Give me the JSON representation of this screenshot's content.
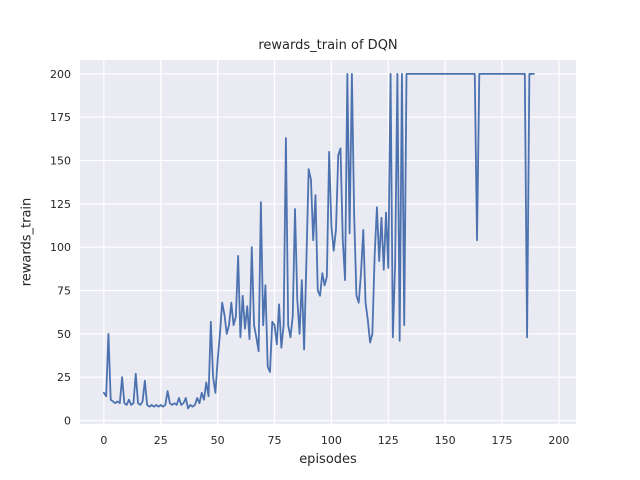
{
  "figure": {
    "title": "rewards_train of DQN",
    "xlabel": "episodes",
    "ylabel": "rewards_train"
  },
  "chart_data": {
    "type": "line",
    "title": "rewards_train of DQN",
    "xlabel": "episodes",
    "ylabel": "rewards_train",
    "xticks": [
      0,
      25,
      50,
      75,
      100,
      125,
      150,
      175,
      200
    ],
    "yticks": [
      0,
      25,
      50,
      75,
      100,
      125,
      150,
      175,
      200
    ],
    "xlim": [
      -10.5,
      207.5
    ],
    "ylim": [
      -2,
      208
    ],
    "grid": true,
    "legend_position": "none",
    "style": {
      "figure_bg": "#ffffff",
      "axes_bg": "#eaeaf2",
      "grid_color": "#ffffff",
      "line_color": "#4c72b0",
      "text_color": "#262626",
      "line_width": 1.8
    },
    "series": [
      {
        "name": "rewards_train",
        "color": "#4c72b0",
        "x_start": 0,
        "x_step": 1,
        "values": [
          16,
          14,
          50,
          12,
          11,
          10,
          11,
          10,
          25,
          10,
          9,
          12,
          9,
          10,
          27,
          10,
          9,
          11,
          23,
          9,
          8,
          9,
          8,
          9,
          8,
          9,
          8,
          9,
          17,
          10,
          9,
          10,
          9,
          13,
          9,
          10,
          13,
          7,
          9,
          8,
          9,
          13,
          10,
          16,
          12,
          22,
          14,
          57,
          25,
          16,
          35,
          50,
          68,
          61,
          50,
          55,
          68,
          55,
          60,
          95,
          48,
          72,
          53,
          66,
          47,
          100,
          55,
          48,
          40,
          126,
          55,
          78,
          31,
          28,
          57,
          55,
          44,
          67,
          42,
          55,
          163,
          55,
          48,
          60,
          122,
          70,
          50,
          81,
          41,
          92,
          145,
          139,
          104,
          130,
          75,
          72,
          85,
          78,
          83,
          155,
          112,
          98,
          110,
          153,
          157,
          104,
          81,
          200,
          108,
          200,
          118,
          72,
          68,
          85,
          110,
          68,
          58,
          45,
          50,
          95,
          123,
          92,
          117,
          87,
          120,
          88,
          200,
          48,
          90,
          200,
          46,
          200,
          55,
          200,
          200,
          200,
          200,
          200,
          200,
          200,
          200,
          200,
          200,
          200,
          200,
          200,
          200,
          200,
          200,
          200,
          200,
          200,
          200,
          200,
          200,
          200,
          200,
          200,
          200,
          200,
          200,
          200,
          200,
          200,
          104,
          200,
          200,
          200,
          200,
          200,
          200,
          200,
          200,
          200,
          200,
          200,
          200,
          200,
          200,
          200,
          200,
          200,
          200,
          200,
          200,
          200,
          48,
          200,
          200,
          200
        ]
      }
    ]
  }
}
